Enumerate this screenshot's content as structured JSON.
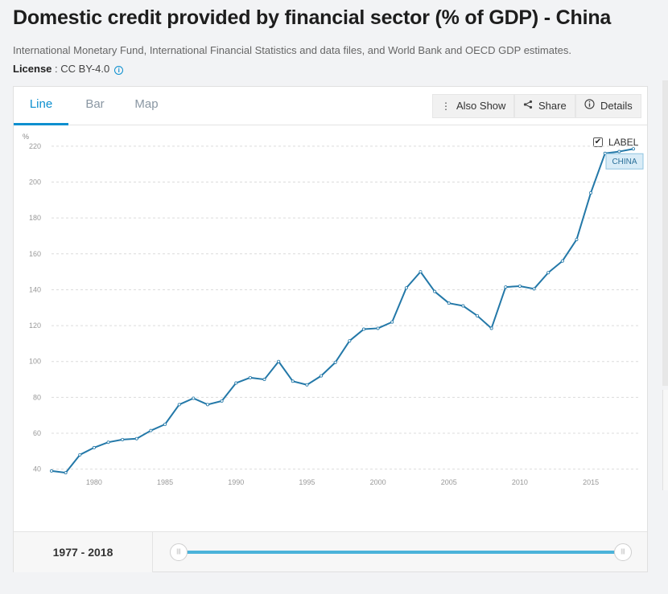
{
  "page": {
    "title": "Domestic credit provided by financial sector (% of GDP) - China",
    "source": "International Monetary Fund, International Financial Statistics and data files, and World Bank and OECD GDP estimates.",
    "license_label": "License",
    "license_sep": " : ",
    "license_value": "CC BY-4.0",
    "info_icon": "i"
  },
  "tabs": [
    {
      "label": "Line",
      "active": true
    },
    {
      "label": "Bar",
      "active": false
    },
    {
      "label": "Map",
      "active": false
    }
  ],
  "toolbar": {
    "also_show": "Also Show",
    "share": "Share",
    "details": "Details"
  },
  "label_toggle": {
    "text": "LABEL",
    "checked": true
  },
  "range": {
    "label": "1977 - 2018"
  },
  "chart_data": {
    "type": "line",
    "ylabel": "%",
    "xlim": [
      1977,
      2018
    ],
    "ylim": [
      30,
      228
    ],
    "yticks": [
      40,
      60,
      80,
      100,
      120,
      140,
      160,
      180,
      200,
      220
    ],
    "xticks": [
      1980,
      1985,
      1990,
      1995,
      2000,
      2005,
      2010,
      2015
    ],
    "grid": "horizontal dashed",
    "line_color": "#2378a8",
    "series": [
      {
        "name": "CHINA",
        "x": [
          1977,
          1978,
          1979,
          1980,
          1981,
          1982,
          1983,
          1984,
          1985,
          1986,
          1987,
          1988,
          1989,
          1990,
          1991,
          1992,
          1993,
          1994,
          1995,
          1996,
          1997,
          1998,
          1999,
          2000,
          2001,
          2002,
          2003,
          2004,
          2005,
          2006,
          2007,
          2008,
          2009,
          2010,
          2011,
          2012,
          2013,
          2014,
          2015,
          2016,
          2017,
          2018
        ],
        "values": [
          39,
          38,
          48,
          52,
          55,
          56.5,
          57,
          61.5,
          65,
          76,
          79.5,
          76,
          78,
          88,
          91,
          90,
          100,
          89,
          87,
          92,
          99.5,
          111.5,
          118,
          118.5,
          122,
          141,
          150,
          139,
          132.5,
          131,
          125.5,
          118.5,
          141.5,
          142,
          140.5,
          149.5,
          156,
          168,
          194,
          216,
          217,
          218.5
        ]
      }
    ]
  }
}
